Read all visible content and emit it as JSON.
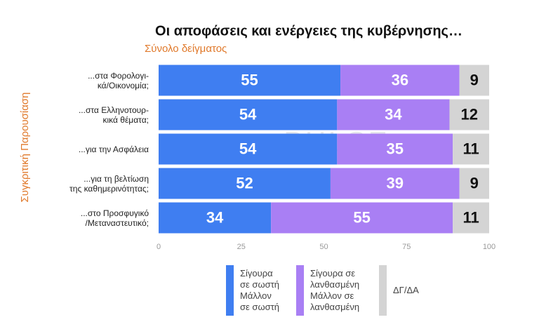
{
  "chart_data": {
    "type": "stacked-bar-horizontal",
    "title": "Οι αποφάσεις και ενέργειες της κυβέρνησης…",
    "subtitle": "Σύνολο δείγματος",
    "y_label": "Συγκριτική  Παρουσίαση",
    "watermark": "PULSE",
    "categories": [
      "...στα Φορολογι-\nκά/Οικονομία;",
      "...στα Ελληνοτουρ-\nκικά θέματα;",
      "...για την Ασφάλεια",
      "...για τη βελτίωση\nτης καθημερινότητας;",
      "...στο Προσφυγικό\n/Μεταναστευτικό;"
    ],
    "series": [
      {
        "name": "Σίγουρα\nσε σωστή\nΜάλλον\nσε σωστή",
        "color": "#3f7ef1",
        "label_color": "#ffffff",
        "values": [
          55,
          54,
          54,
          52,
          34
        ]
      },
      {
        "name": "Σίγουρα σε\nλανθασμένη\nΜάλλον σε\nλανθασμένη",
        "color": "#a97ff4",
        "label_color": "#ffffff",
        "values": [
          36,
          34,
          35,
          39,
          55
        ]
      },
      {
        "name": "ΔΓ/ΔΑ",
        "color": "#d4d4d4",
        "label_color": "#111111",
        "values": [
          9,
          12,
          11,
          9,
          11
        ]
      }
    ],
    "xlim": [
      0,
      100
    ],
    "xticks": [
      0,
      25,
      50,
      75,
      100
    ],
    "grid": false
  }
}
